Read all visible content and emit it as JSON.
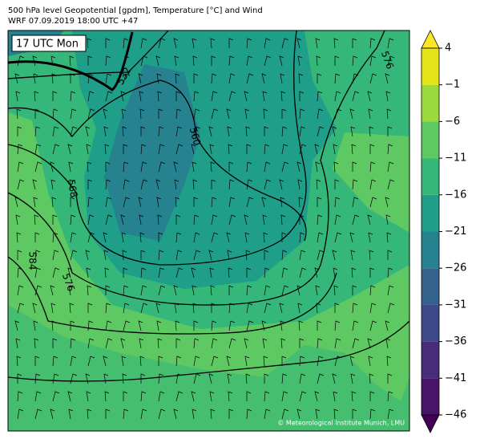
{
  "header": {
    "line1": "500 hPa level Geopotential [gpdm], Temperature [°C] and Wind",
    "line2": "WRF 07.09.2019 18:00 UTC +47"
  },
  "map": {
    "time_label": "17 UTC Mon",
    "contour_labels": [
      "532",
      "560",
      "568",
      "576",
      "584",
      "576"
    ],
    "credit": "© Meteorological Institute Munich, LMU"
  },
  "colorbar": {
    "range": [
      -46,
      4
    ],
    "ticks": [
      {
        "value": -46,
        "label": "−46"
      },
      {
        "value": -41,
        "label": "−41"
      },
      {
        "value": -36,
        "label": "−36"
      },
      {
        "value": -31,
        "label": "−31"
      },
      {
        "value": -26,
        "label": "−26"
      },
      {
        "value": -21,
        "label": "−21"
      },
      {
        "value": -16,
        "label": "−16"
      },
      {
        "value": -11,
        "label": "−11"
      },
      {
        "value": -6,
        "label": "−6"
      },
      {
        "value": -1,
        "label": "−1"
      },
      4
    ],
    "colors": [
      "#440154",
      "#481467",
      "#472c7a",
      "#3e4989",
      "#33638d",
      "#26828e",
      "#1f9e89",
      "#35b779",
      "#5ec962",
      "#9bd93c",
      "#e4e419",
      "#fde725"
    ]
  }
}
